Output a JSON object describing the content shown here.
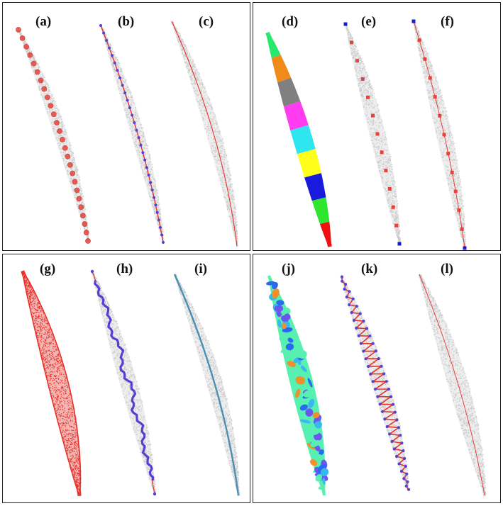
{
  "figure": {
    "quadrants": [
      {
        "panels": [
          "(a)",
          "(b)",
          "(c)"
        ]
      },
      {
        "panels": [
          "(d)",
          "(e)",
          "(f)"
        ]
      },
      {
        "panels": [
          "(g)",
          "(h)",
          "(i)"
        ]
      },
      {
        "panels": [
          "(j)",
          "(k)",
          "(l)"
        ]
      }
    ]
  },
  "colors": {
    "cloud_gray": "#c9c9c9",
    "node_red": "#e8413a",
    "line_red": "#e8312a",
    "node_blue": "#5540d6",
    "endpoint_blue": "#1a1acc",
    "skeleton_teal": "#4a8fb3",
    "segments": [
      "#27e86a",
      "#f08a1a",
      "#808080",
      "#ff3cf0",
      "#2fe6f0",
      "#ffff1a",
      "#1a1add",
      "#2ee62e",
      "#ee1111"
    ],
    "patches": [
      "#6b57f0",
      "#39b8f0",
      "#57f0b0",
      "#f0902a",
      "#2a6af0"
    ]
  }
}
